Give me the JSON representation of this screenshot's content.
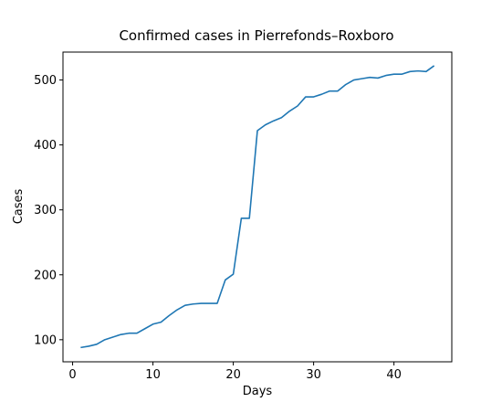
{
  "chart_data": {
    "type": "line",
    "title": "Confirmed cases in Pierrefonds–Roxboro",
    "xlabel": "Days",
    "ylabel": "Cases",
    "xlim": [
      -1.2,
      47.2
    ],
    "ylim": [
      66,
      543
    ],
    "xticks": [
      0,
      10,
      20,
      30,
      40
    ],
    "yticks": [
      100,
      200,
      300,
      400,
      500
    ],
    "grid": false,
    "color": "#1f77b4",
    "x": [
      1,
      2,
      3,
      4,
      5,
      6,
      7,
      8,
      9,
      10,
      11,
      12,
      13,
      14,
      15,
      16,
      17,
      18,
      19,
      20,
      21,
      22,
      23,
      24,
      25,
      26,
      27,
      28,
      29,
      30,
      31,
      32,
      33,
      34,
      35,
      36,
      37,
      38,
      39,
      40,
      41,
      42,
      43,
      44,
      45
    ],
    "y": [
      88,
      90,
      93,
      100,
      104,
      108,
      110,
      110,
      117,
      124,
      127,
      137,
      146,
      153,
      155,
      156,
      156,
      156,
      192,
      201,
      287,
      287,
      422,
      431,
      437,
      442,
      452,
      460,
      474,
      474,
      478,
      483,
      483,
      493,
      500,
      502,
      504,
      503,
      507,
      509,
      509,
      513,
      514,
      513,
      522
    ]
  }
}
